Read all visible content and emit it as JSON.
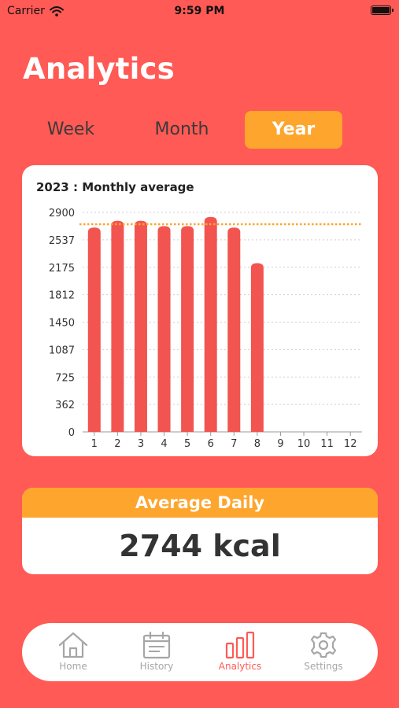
{
  "status_bar": {
    "carrier": "Carrier",
    "time": "9:59 PM"
  },
  "page": {
    "title": "Analytics"
  },
  "tabs": [
    {
      "label": "Week",
      "selected": false
    },
    {
      "label": "Month",
      "selected": false
    },
    {
      "label": "Year",
      "selected": true
    }
  ],
  "colors": {
    "background": "#FF5A55",
    "accent": "#FDA52D",
    "bar": "#F25450",
    "card": "#FFFFFF",
    "inactive_icon": "#A6A6A6"
  },
  "chart_data": {
    "type": "bar",
    "title": "2023 : Monthly average",
    "categories": [
      "1",
      "2",
      "3",
      "4",
      "5",
      "6",
      "7",
      "8",
      "9",
      "10",
      "11",
      "12"
    ],
    "values": [
      2700,
      2790,
      2790,
      2720,
      2720,
      2840,
      2700,
      2230,
      null,
      null,
      null,
      null
    ],
    "average_line": 2744,
    "y_ticks": [
      "0",
      "362",
      "725",
      "1087",
      "1450",
      "1812",
      "2175",
      "2537",
      "2900"
    ],
    "ylim": [
      0,
      2900
    ],
    "grid": true
  },
  "average_daily": {
    "heading": "Average Daily",
    "value": "2744 kcal"
  },
  "bottom_nav": [
    {
      "label": "Home",
      "icon": "home-icon",
      "active": false
    },
    {
      "label": "History",
      "icon": "calendar-icon",
      "active": false
    },
    {
      "label": "Analytics",
      "icon": "bar-chart-icon",
      "active": true
    },
    {
      "label": "Settings",
      "icon": "gear-icon",
      "active": false
    }
  ]
}
